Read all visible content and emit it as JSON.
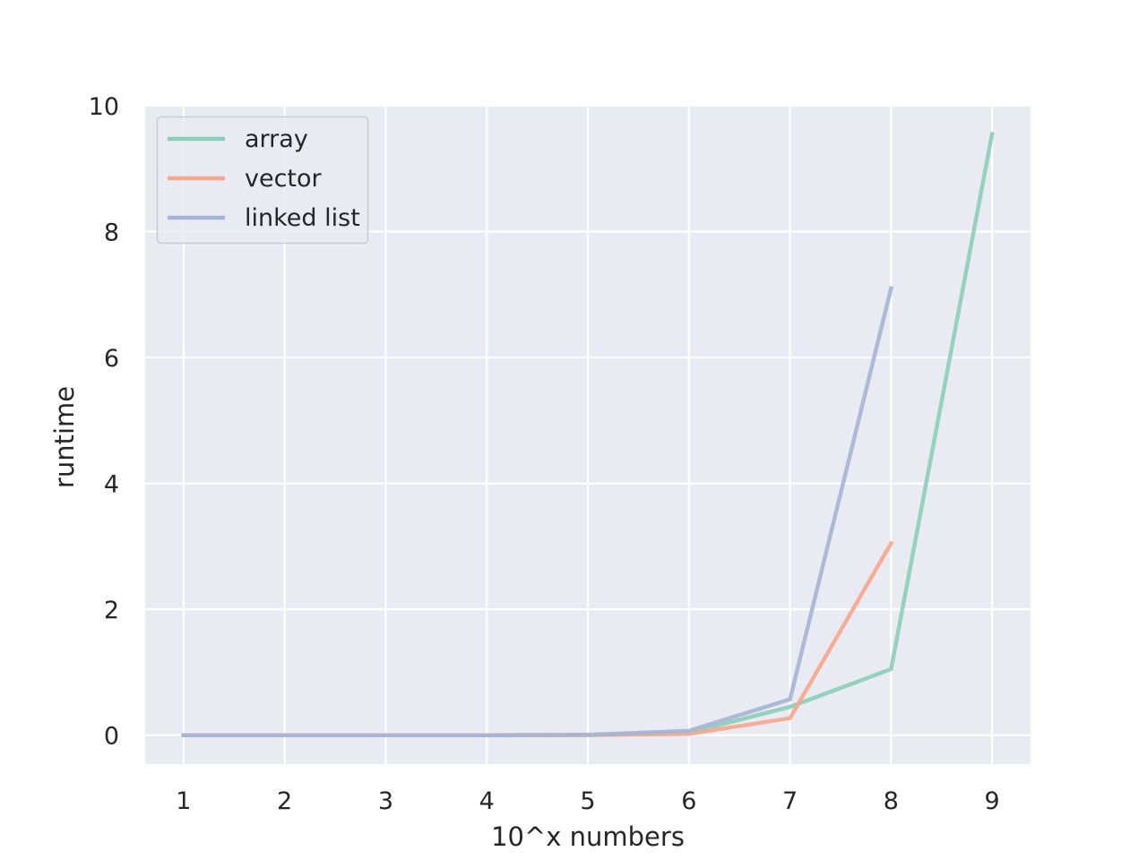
{
  "chart_data": {
    "type": "line",
    "xlabel": "10^x numbers",
    "ylabel": "runtime",
    "xlim": [
      0.62,
      9.38
    ],
    "ylim": [
      -0.46,
      10.0
    ],
    "x_ticks": [
      1,
      2,
      3,
      4,
      5,
      6,
      7,
      8,
      9
    ],
    "y_ticks": [
      0,
      2,
      4,
      6,
      8,
      10
    ],
    "grid": true,
    "legend_position": "top-left",
    "series": [
      {
        "name": "array",
        "color": "#8ccfb9",
        "x": [
          1,
          2,
          3,
          4,
          5,
          6,
          7,
          8,
          9
        ],
        "y": [
          0.0,
          0.0,
          0.0,
          0.0,
          0.003,
          0.04,
          0.45,
          1.05,
          9.55
        ]
      },
      {
        "name": "vector",
        "color": "#f5a88d",
        "x": [
          1,
          2,
          3,
          4,
          5,
          6,
          7,
          8
        ],
        "y": [
          0.0,
          0.0,
          0.0,
          0.0,
          0.003,
          0.02,
          0.27,
          3.05
        ]
      },
      {
        "name": "linked list",
        "color": "#a6b4d6",
        "x": [
          1,
          2,
          3,
          4,
          5,
          6,
          7,
          8
        ],
        "y": [
          0.0,
          0.0,
          0.0,
          0.0,
          0.006,
          0.07,
          0.57,
          7.1
        ]
      }
    ]
  }
}
